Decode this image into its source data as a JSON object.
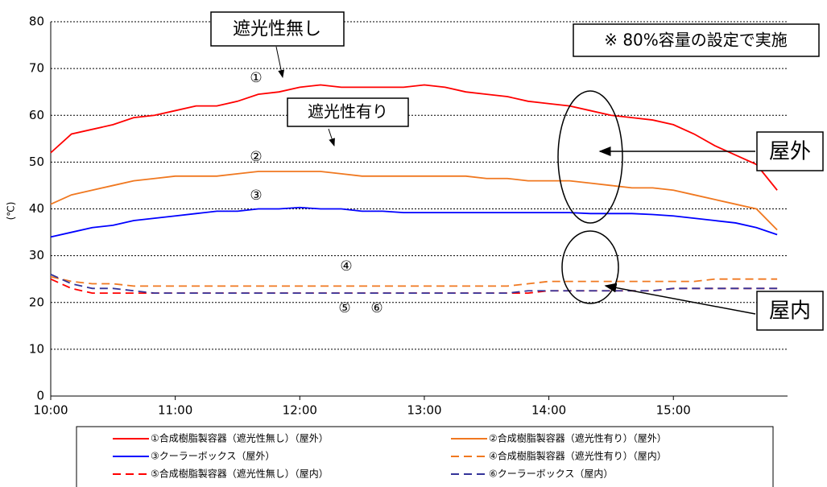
{
  "chart_data": {
    "type": "line",
    "y_label": "(℃)",
    "x": [
      "10:00",
      "10:10",
      "10:20",
      "10:30",
      "10:40",
      "10:50",
      "11:00",
      "11:10",
      "11:20",
      "11:30",
      "11:40",
      "11:50",
      "12:00",
      "12:10",
      "12:20",
      "12:30",
      "12:40",
      "12:50",
      "13:00",
      "13:10",
      "13:20",
      "13:30",
      "13:40",
      "13:50",
      "14:00",
      "14:10",
      "14:20",
      "14:30",
      "14:40",
      "14:50",
      "15:00",
      "15:10",
      "15:20",
      "15:30",
      "15:40",
      "15:50"
    ],
    "xlim": [
      "10:00",
      "15:55"
    ],
    "xticks": [
      "10:00",
      "11:00",
      "12:00",
      "13:00",
      "14:00",
      "15:00"
    ],
    "ylim": [
      0,
      80
    ],
    "yticks": [
      0,
      10,
      20,
      30,
      40,
      50,
      60,
      70,
      80
    ],
    "grid": true,
    "series": [
      {
        "name": "①合成樹脂製容器（遮光性無し）（屋外）",
        "color": "#ff0000",
        "style": "solid",
        "values": [
          52,
          56,
          57,
          58,
          59.5,
          60,
          61,
          62,
          62,
          63,
          64.5,
          65,
          66,
          66.5,
          66,
          66,
          66,
          66,
          66.5,
          66,
          65,
          64.5,
          64,
          63,
          62.5,
          62,
          61,
          60,
          59.5,
          59,
          58,
          56,
          53.5,
          51.5,
          49.5,
          44
        ]
      },
      {
        "name": "②合成樹脂製容器（遮光性有り）（屋外）",
        "color": "#f07820",
        "style": "solid",
        "values": [
          41,
          43,
          44,
          45,
          46,
          46.5,
          47,
          47,
          47,
          47.5,
          48,
          48,
          48,
          48,
          47.5,
          47,
          47,
          47,
          47,
          47,
          47,
          46.5,
          46.5,
          46,
          46,
          46,
          45.5,
          45,
          44.5,
          44.5,
          44,
          43,
          42,
          41,
          40,
          35.5
        ]
      },
      {
        "name": "③クーラーボックス（屋外）",
        "color": "#0000ff",
        "style": "solid",
        "values": [
          34,
          35,
          36,
          36.5,
          37.5,
          38,
          38.5,
          39,
          39.5,
          39.5,
          40,
          40,
          40.3,
          40,
          40,
          39.5,
          39.5,
          39.2,
          39.2,
          39.2,
          39.2,
          39.2,
          39.2,
          39.2,
          39.2,
          39.2,
          39,
          39,
          39,
          38.8,
          38.5,
          38,
          37.5,
          37,
          36,
          34.5
        ]
      },
      {
        "name": "④合成樹脂製容器（遮光性有り）（屋内）",
        "color": "#f07820",
        "style": "dashed",
        "values": [
          25.5,
          24.5,
          24,
          24,
          23.5,
          23.5,
          23.5,
          23.5,
          23.5,
          23.5,
          23.5,
          23.5,
          23.5,
          23.5,
          23.5,
          23.5,
          23.5,
          23.5,
          23.5,
          23.5,
          23.5,
          23.5,
          23.5,
          24,
          24.5,
          24.5,
          24.5,
          24.5,
          24.5,
          24.5,
          24.5,
          24.5,
          25,
          25,
          25,
          25
        ]
      },
      {
        "name": "⑤合成樹脂製容器（遮光性無し）（屋内）",
        "color": "#ff0000",
        "style": "dashed",
        "values": [
          25,
          23,
          22,
          22,
          22,
          22,
          22,
          22,
          22,
          22,
          22,
          22,
          22,
          22,
          22,
          22,
          22,
          22,
          22,
          22,
          22,
          22,
          22,
          22,
          22.5,
          22.5,
          22.5,
          22.5,
          22.5,
          22.5,
          23,
          23,
          23,
          23,
          23,
          23
        ]
      },
      {
        "name": "⑥クーラーボックス（屋内）",
        "color": "#333399",
        "style": "dashed",
        "values": [
          26,
          24,
          23,
          23,
          22.5,
          22,
          22,
          22,
          22,
          22,
          22,
          22,
          22,
          22,
          22,
          22,
          22,
          22,
          22,
          22,
          22,
          22,
          22,
          22.5,
          22.5,
          22.5,
          22.5,
          22.5,
          22.5,
          22.5,
          23,
          23,
          23,
          23,
          23,
          23
        ]
      }
    ],
    "annotations": [
      "遮光性無し",
      "遮光性有り",
      "※ 80%容量の設定で実施",
      "屋外",
      "屋内",
      "①",
      "②",
      "③",
      "④",
      "⑤",
      "⑥"
    ]
  }
}
